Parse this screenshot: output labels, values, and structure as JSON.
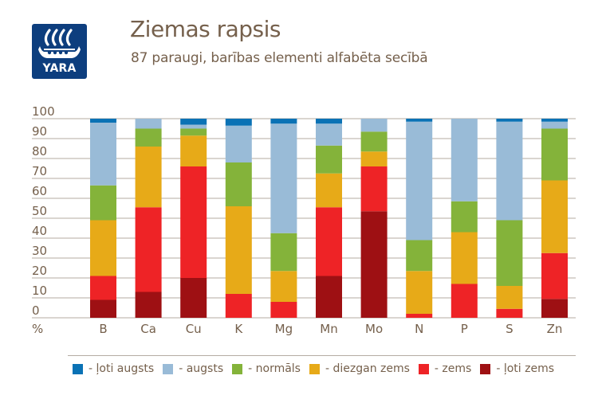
{
  "header": {
    "logo_text": "YARA",
    "title": "Ziemas rapsis",
    "subtitle": "87 paraugi, barības elementi alfabēta secībā"
  },
  "colors": {
    "loti_augsts": "#0a72b5",
    "augsts": "#99bbd7",
    "normals": "#84b33a",
    "diezgan_zems": "#e7aa18",
    "zems": "#ee2326",
    "loti_zems": "#9e1013",
    "text": "#75604c",
    "grid": "#b5aba2",
    "logo_bg": "#0d3e7e"
  },
  "chart_data": {
    "type": "bar",
    "stacked": true,
    "title": "Ziemas rapsis",
    "subtitle": "87 paraugi, barības elementi alfabēta secībā",
    "xlabel": "",
    "ylabel": "%",
    "ylim": [
      0,
      100
    ],
    "yticks": [
      0,
      10,
      20,
      30,
      40,
      50,
      60,
      70,
      80,
      90,
      100
    ],
    "grid": true,
    "legend_position": "bottom",
    "categories": [
      "B",
      "Ca",
      "Cu",
      "K",
      "Mg",
      "Mn",
      "Mo",
      "N",
      "P",
      "S",
      "Zn"
    ],
    "series": [
      {
        "name": "- ļoti zems",
        "key": "loti_zems",
        "color": "#9e1013",
        "values": [
          9,
          13,
          20,
          0,
          0,
          21,
          53.5,
          0,
          0,
          0,
          9.5
        ]
      },
      {
        "name": "- zems",
        "key": "zems",
        "color": "#ee2326",
        "values": [
          12,
          42.5,
          56,
          12,
          8,
          34.5,
          22.5,
          2,
          17,
          4.5,
          23
        ]
      },
      {
        "name": "- diezgan zems",
        "key": "diezgan_zems",
        "color": "#e7aa18",
        "values": [
          28,
          30.5,
          15.5,
          44,
          15.5,
          17,
          7.5,
          21.5,
          26,
          11.5,
          36.5
        ]
      },
      {
        "name": "- normāls",
        "key": "normals",
        "color": "#84b33a",
        "values": [
          17.5,
          9,
          3.5,
          22,
          19,
          14,
          10,
          15.5,
          15.5,
          33,
          26
        ]
      },
      {
        "name": "- augsts",
        "key": "augsts",
        "color": "#99bbd7",
        "values": [
          31.5,
          5,
          2,
          18.5,
          55,
          11,
          6.5,
          59.5,
          41.5,
          49.5,
          3.5
        ]
      },
      {
        "name": "- ļoti augsts",
        "key": "loti_augsts",
        "color": "#0a72b5",
        "values": [
          2,
          0,
          3,
          3.5,
          2.5,
          2.5,
          0,
          1.5,
          0,
          1.5,
          1.5
        ]
      }
    ]
  },
  "legend": [
    {
      "label": "- ļoti augsts",
      "color": "#0a72b5"
    },
    {
      "label": "- augsts",
      "color": "#99bbd7"
    },
    {
      "label": "- normāls",
      "color": "#84b33a"
    },
    {
      "label": "- diezgan zems",
      "color": "#e7aa18"
    },
    {
      "label": "- zems",
      "color": "#ee2326"
    },
    {
      "label": "- ļoti zems",
      "color": "#9e1013"
    }
  ]
}
